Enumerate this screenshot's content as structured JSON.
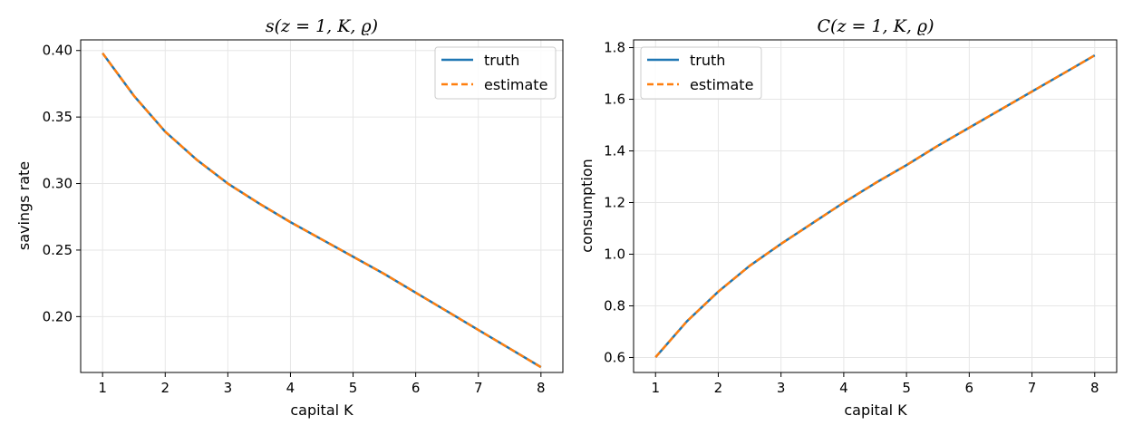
{
  "colors": {
    "truth": "#1f77b4",
    "estimate": "#ff7f0e",
    "grid": "#e6e6e6"
  },
  "chart_data": [
    {
      "type": "line",
      "title": "s(z = 1, K, ϱ)",
      "xlabel": "capital K",
      "ylabel": "savings rate",
      "xlim": [
        0.65,
        8.35
      ],
      "ylim": [
        0.158,
        0.408
      ],
      "xticks": [
        1,
        2,
        3,
        4,
        5,
        6,
        7,
        8
      ],
      "yticks": [
        0.2,
        0.25,
        0.3,
        0.35,
        0.4
      ],
      "ytick_labels": [
        "0.20",
        "0.25",
        "0.30",
        "0.35",
        "0.40"
      ],
      "grid": true,
      "legend": "top-right",
      "x": [
        1,
        1.5,
        2,
        2.5,
        3,
        3.5,
        4,
        4.5,
        5,
        5.5,
        6,
        6.5,
        7,
        7.5,
        8
      ],
      "series": [
        {
          "name": "truth",
          "values": [
            0.398,
            0.366,
            0.339,
            0.318,
            0.3,
            0.285,
            0.271,
            0.258,
            0.245,
            0.232,
            0.218,
            0.204,
            0.19,
            0.176,
            0.162
          ]
        },
        {
          "name": "estimate",
          "values": [
            0.398,
            0.366,
            0.339,
            0.318,
            0.3,
            0.285,
            0.271,
            0.258,
            0.245,
            0.232,
            0.218,
            0.204,
            0.19,
            0.176,
            0.162
          ]
        }
      ]
    },
    {
      "type": "line",
      "title": "C(z = 1, K, ϱ)",
      "xlabel": "capital K",
      "ylabel": "consumption",
      "xlim": [
        0.65,
        8.35
      ],
      "ylim": [
        0.542,
        1.83
      ],
      "xticks": [
        1,
        2,
        3,
        4,
        5,
        6,
        7,
        8
      ],
      "yticks": [
        0.6,
        0.8,
        1.0,
        1.2,
        1.4,
        1.6,
        1.8
      ],
      "ytick_labels": [
        "0.6",
        "0.8",
        "1.0",
        "1.2",
        "1.4",
        "1.6",
        "1.8"
      ],
      "grid": true,
      "legend": "top-left",
      "x": [
        1,
        1.5,
        2,
        2.5,
        3,
        3.5,
        4,
        4.5,
        5,
        5.5,
        6,
        6.5,
        7,
        7.5,
        8
      ],
      "series": [
        {
          "name": "truth",
          "values": [
            0.601,
            0.74,
            0.855,
            0.955,
            1.04,
            1.12,
            1.2,
            1.275,
            1.345,
            1.42,
            1.49,
            1.56,
            1.63,
            1.7,
            1.77
          ]
        },
        {
          "name": "estimate",
          "values": [
            0.601,
            0.74,
            0.855,
            0.955,
            1.04,
            1.12,
            1.2,
            1.275,
            1.345,
            1.42,
            1.49,
            1.56,
            1.63,
            1.7,
            1.77
          ]
        }
      ]
    }
  ]
}
